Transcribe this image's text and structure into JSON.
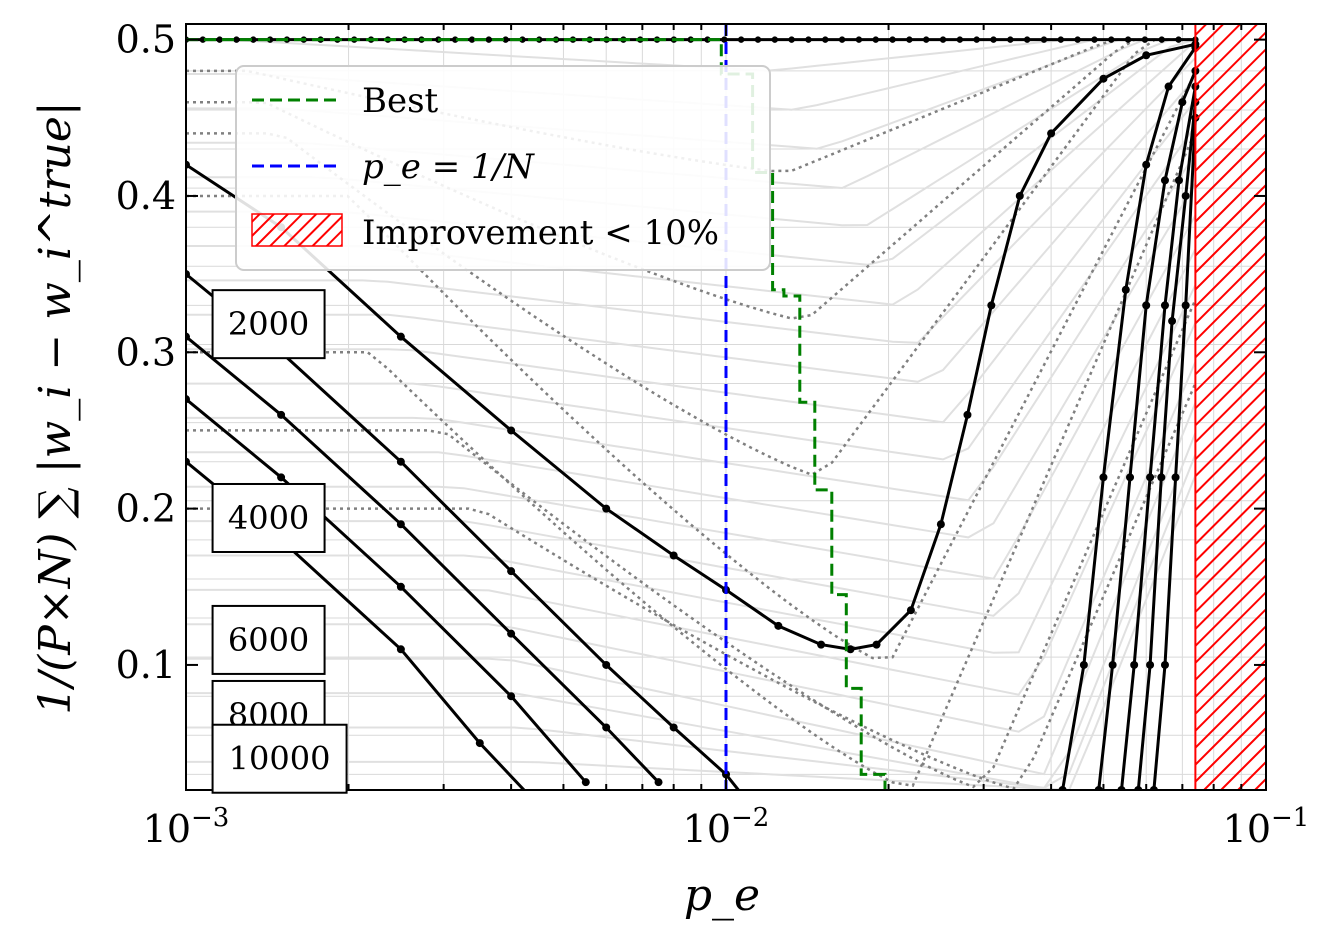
{
  "chart_data": {
    "type": "line",
    "xscale": "log",
    "xlim": [
      0.001,
      0.1
    ],
    "ylim": [
      0.02,
      0.51
    ],
    "xlabel": "p_e",
    "ylabel": "1/(P×N) ∑ |w_i − w_i^true|",
    "x_ticks": [
      {
        "value": 0.001,
        "base": "10",
        "exp": "−3"
      },
      {
        "value": 0.01,
        "base": "10",
        "exp": "−2"
      },
      {
        "value": 0.1,
        "base": "10",
        "exp": "−1"
      }
    ],
    "y_ticks": [
      {
        "value": 0.1,
        "label": "0.1"
      },
      {
        "value": 0.2,
        "label": "0.2"
      },
      {
        "value": 0.3,
        "label": "0.3"
      },
      {
        "value": 0.4,
        "label": "0.4"
      },
      {
        "value": 0.5,
        "label": "0.5"
      }
    ],
    "legend": {
      "position": "top-left",
      "entries": [
        {
          "label": "Best",
          "style": "green-dashed"
        },
        {
          "label": "p_e = 1/N",
          "style": "blue-dashed"
        },
        {
          "label": "Improvement < 10%",
          "style": "red-hatch"
        }
      ]
    },
    "colors": {
      "best": "#008000",
      "vline": "#0000ff",
      "hatch": "#ff0000",
      "main": "#000000",
      "dotted": "#808080",
      "faint": "#e0e0e0"
    },
    "vline_x": 0.01,
    "hatch_x_start": 0.074,
    "series": [
      {
        "n_label": "2000",
        "pts": [
          [
            0.001,
            0.42
          ],
          [
            0.0015,
            0.38
          ],
          [
            0.0025,
            0.31
          ],
          [
            0.004,
            0.25
          ],
          [
            0.006,
            0.2
          ],
          [
            0.008,
            0.17
          ],
          [
            0.01,
            0.148
          ],
          [
            0.0125,
            0.125
          ],
          [
            0.015,
            0.113
          ],
          [
            0.017,
            0.11
          ],
          [
            0.019,
            0.113
          ],
          [
            0.022,
            0.135
          ],
          [
            0.025,
            0.19
          ],
          [
            0.028,
            0.26
          ],
          [
            0.031,
            0.33
          ],
          [
            0.035,
            0.4
          ],
          [
            0.04,
            0.44
          ],
          [
            0.05,
            0.475
          ],
          [
            0.06,
            0.49
          ],
          [
            0.074,
            0.497
          ]
        ]
      },
      {
        "n_label": "4000",
        "pts": [
          [
            0.001,
            0.35
          ],
          [
            0.0015,
            0.3
          ],
          [
            0.0025,
            0.23
          ],
          [
            0.004,
            0.16
          ],
          [
            0.006,
            0.1
          ],
          [
            0.008,
            0.06
          ],
          [
            0.01,
            0.03
          ],
          [
            0.011,
            0.012
          ]
        ]
      },
      {
        "n_label": "6000",
        "pts": [
          [
            0.001,
            0.31
          ],
          [
            0.0015,
            0.26
          ],
          [
            0.0025,
            0.19
          ],
          [
            0.004,
            0.12
          ],
          [
            0.006,
            0.06
          ],
          [
            0.0075,
            0.025
          ]
        ]
      },
      {
        "n_label": "8000",
        "pts": [
          [
            0.001,
            0.27
          ],
          [
            0.0015,
            0.22
          ],
          [
            0.0025,
            0.15
          ],
          [
            0.004,
            0.08
          ],
          [
            0.0055,
            0.025
          ]
        ]
      },
      {
        "n_label": "10000",
        "pts": [
          [
            0.001,
            0.23
          ],
          [
            0.0015,
            0.18
          ],
          [
            0.0025,
            0.11
          ],
          [
            0.0035,
            0.05
          ],
          [
            0.0045,
            0.01
          ]
        ]
      }
    ],
    "right_rising_series": [
      {
        "pts": [
          [
            0.042,
            0.02
          ],
          [
            0.046,
            0.1
          ],
          [
            0.05,
            0.22
          ],
          [
            0.055,
            0.34
          ],
          [
            0.06,
            0.42
          ],
          [
            0.066,
            0.47
          ],
          [
            0.074,
            0.495
          ]
        ]
      },
      {
        "pts": [
          [
            0.049,
            0.02
          ],
          [
            0.052,
            0.1
          ],
          [
            0.056,
            0.22
          ],
          [
            0.06,
            0.33
          ],
          [
            0.065,
            0.41
          ],
          [
            0.07,
            0.46
          ],
          [
            0.074,
            0.48
          ]
        ]
      },
      {
        "pts": [
          [
            0.054,
            0.02
          ],
          [
            0.057,
            0.1
          ],
          [
            0.061,
            0.22
          ],
          [
            0.065,
            0.33
          ],
          [
            0.069,
            0.41
          ],
          [
            0.074,
            0.47
          ]
        ]
      },
      {
        "pts": [
          [
            0.058,
            0.02
          ],
          [
            0.061,
            0.1
          ],
          [
            0.064,
            0.22
          ],
          [
            0.067,
            0.32
          ],
          [
            0.071,
            0.4
          ],
          [
            0.074,
            0.46
          ]
        ]
      },
      {
        "pts": [
          [
            0.062,
            0.02
          ],
          [
            0.065,
            0.1
          ],
          [
            0.068,
            0.22
          ],
          [
            0.071,
            0.33
          ],
          [
            0.074,
            0.45
          ]
        ]
      }
    ],
    "best_steps": [
      [
        0.001,
        0.5
      ],
      [
        0.0098,
        0.5
      ],
      [
        0.0098,
        0.478
      ],
      [
        0.0112,
        0.478
      ],
      [
        0.0112,
        0.415
      ],
      [
        0.0122,
        0.415
      ],
      [
        0.0122,
        0.34
      ],
      [
        0.0128,
        0.34
      ],
      [
        0.0128,
        0.336
      ],
      [
        0.0137,
        0.336
      ],
      [
        0.0137,
        0.268
      ],
      [
        0.0146,
        0.268
      ],
      [
        0.0146,
        0.212
      ],
      [
        0.0157,
        0.212
      ],
      [
        0.0157,
        0.145
      ],
      [
        0.0167,
        0.145
      ],
      [
        0.0167,
        0.085
      ],
      [
        0.0178,
        0.085
      ],
      [
        0.0178,
        0.03
      ],
      [
        0.0197,
        0.03
      ],
      [
        0.0197,
        0.02
      ]
    ],
    "n_boxes": [
      {
        "label": "2000",
        "x": 0.00112,
        "y": 0.318
      },
      {
        "label": "4000",
        "x": 0.00112,
        "y": 0.194
      },
      {
        "label": "6000",
        "x": 0.00112,
        "y": 0.116
      },
      {
        "label": "8000",
        "x": 0.00112,
        "y": 0.068
      },
      {
        "label": "10000",
        "x": 0.00112,
        "y": 0.04
      }
    ]
  }
}
